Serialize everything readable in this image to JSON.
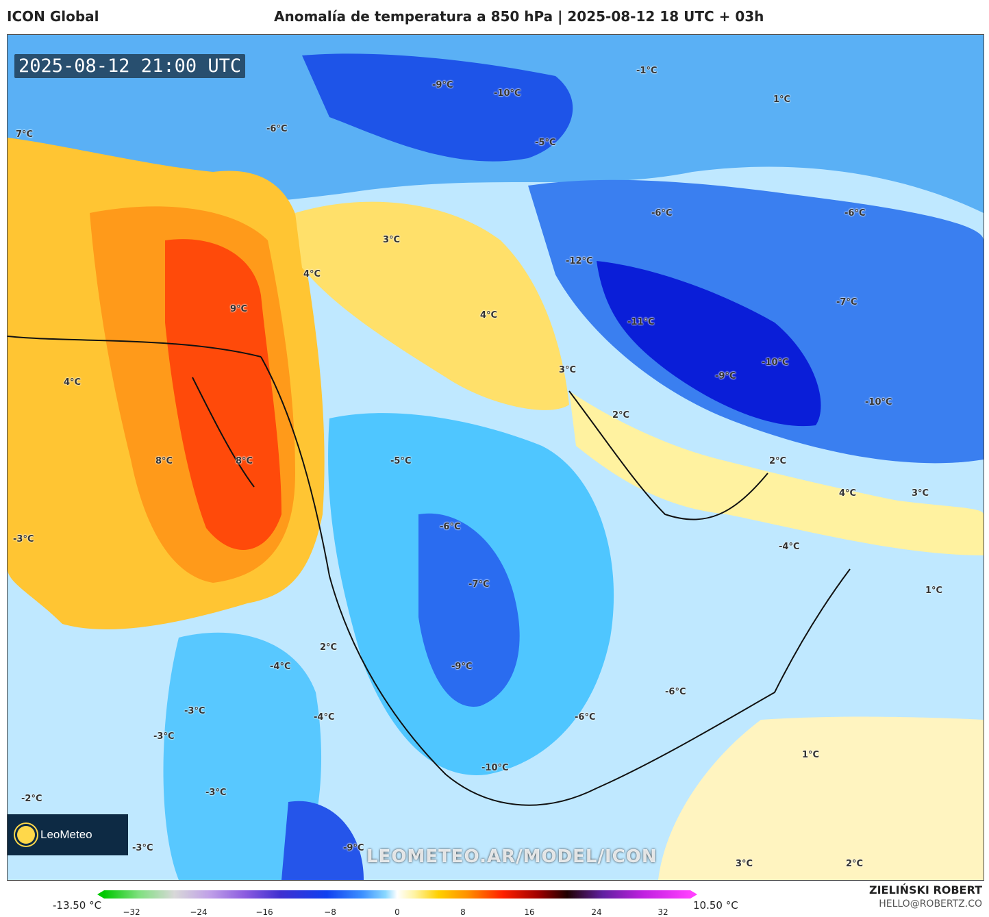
{
  "header": {
    "model": "ICON Global",
    "title": "Anomalía de temperatura a 850 hPa | 2025-08-12 18 UTC + 03h"
  },
  "map": {
    "timestamp": "2025-08-12 21:00 UTC",
    "watermark": "LEOMETEO.AR/MODEL/ICON",
    "logo_text": "LeoMeteo",
    "labels": [
      "7°C",
      "-9°C",
      "-10°C",
      "-1°C",
      "1°C",
      "-6°C",
      "-5°C",
      "3°C",
      "-6°C",
      "-6°C",
      "4°C",
      "-12°C",
      "9°C",
      "4°C",
      "-7°C",
      "-11°C",
      "-10°C",
      "3°C",
      "-9°C",
      "4°C",
      "2°C",
      "-10°C",
      "-5°C",
      "8°C",
      "8°C",
      "2°C",
      "-6°C",
      "4°C",
      "3°C",
      "-3°C",
      "-4°C",
      "-7°C",
      "1°C",
      "2°C",
      "-4°C",
      "-9°C",
      "-6°C",
      "-3°C",
      "-4°C",
      "-6°C",
      "-3°C",
      "1°C",
      "-3°C",
      "-10°C",
      "-2°C",
      "-3°C",
      "-9°C",
      "3°C",
      "2°C"
    ]
  },
  "colorbar": {
    "min_label": "-13.50 °C",
    "max_label": "10.50 °C",
    "ticks": [
      "−32",
      "−24",
      "−16",
      "−8",
      "0",
      "8",
      "16",
      "24",
      "32"
    ]
  },
  "credits": {
    "author": "ZIELIŃSKI ROBERT",
    "email": "HELLO@ROBERTZ.CO"
  }
}
